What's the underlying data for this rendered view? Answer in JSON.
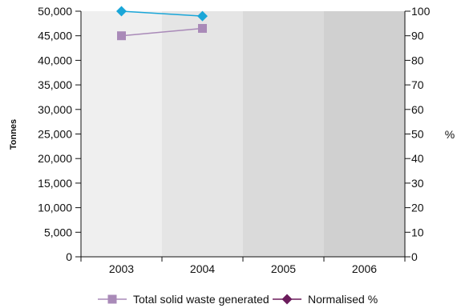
{
  "chart_data": {
    "type": "line",
    "categories": [
      "2003",
      "2004",
      "2005",
      "2006"
    ],
    "band_colors": [
      "#efefef",
      "#e5e5e5",
      "#dadada",
      "#d0d0d0"
    ],
    "left_axis": {
      "title": "Tonnes",
      "range": [
        0,
        50000
      ],
      "ticks": [
        0,
        5000,
        10000,
        15000,
        20000,
        25000,
        30000,
        35000,
        40000,
        45000,
        50000
      ],
      "tick_labels": [
        "0",
        "5,000",
        "10,000",
        "15,000",
        "20,000",
        "25,000",
        "30,000",
        "35,000",
        "40,000",
        "45,000",
        "50,000"
      ]
    },
    "right_axis": {
      "title": "%",
      "range": [
        0,
        100
      ],
      "ticks": [
        0,
        10,
        20,
        30,
        40,
        50,
        60,
        70,
        80,
        90,
        100
      ],
      "tick_labels": [
        "0",
        "10",
        "20",
        "30",
        "40",
        "50",
        "60",
        "70",
        "80",
        "90",
        "100"
      ]
    },
    "series": [
      {
        "name": "Total solid waste generated",
        "axis": "left",
        "marker": "square",
        "color": "#a98ab8",
        "values": [
          45000,
          46500,
          null,
          null
        ]
      },
      {
        "name": "Normalised %",
        "axis": "right",
        "marker": "diamond",
        "color": "#1aa6d8",
        "legend_color": "#6b1c5c",
        "values": [
          100,
          98,
          null,
          null
        ]
      }
    ],
    "legend_position": "bottom",
    "grid": false
  }
}
